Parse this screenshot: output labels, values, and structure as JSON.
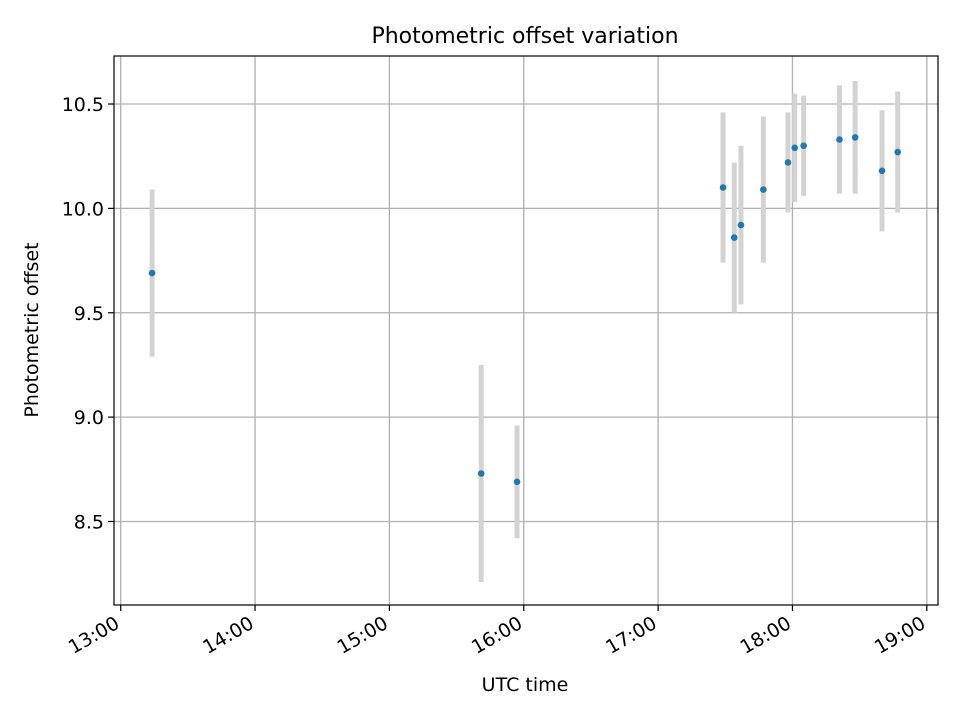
{
  "chart_data": {
    "type": "scatter",
    "title": "Photometric offset variation",
    "xlabel": "UTC time",
    "ylabel": "Photometric offset",
    "xlim": [
      "12:57",
      "19:05"
    ],
    "ylim": [
      8.1,
      10.73
    ],
    "x_ticks": [
      "13:00",
      "14:00",
      "15:00",
      "16:00",
      "17:00",
      "18:00",
      "19:00"
    ],
    "y_ticks": [
      8.5,
      9.0,
      9.5,
      10.0,
      10.5
    ],
    "grid": true,
    "colors": {
      "point": "#1f77b4",
      "errorbar": "#d3d3d3",
      "grid": "#b0b0b0"
    },
    "points": [
      {
        "time": "13:14",
        "y": 9.69,
        "y_err": 0.4
      },
      {
        "time": "15:41",
        "y": 8.73,
        "y_err": 0.52
      },
      {
        "time": "15:57",
        "y": 8.69,
        "y_err": 0.27
      },
      {
        "time": "17:29",
        "y": 10.1,
        "y_err": 0.36
      },
      {
        "time": "17:34",
        "y": 9.86,
        "y_err": 0.36
      },
      {
        "time": "17:37",
        "y": 9.92,
        "y_err": 0.38
      },
      {
        "time": "17:47",
        "y": 10.09,
        "y_err": 0.35
      },
      {
        "time": "17:58",
        "y": 10.22,
        "y_err": 0.24
      },
      {
        "time": "18:01",
        "y": 10.29,
        "y_err": 0.26
      },
      {
        "time": "18:05",
        "y": 10.3,
        "y_err": 0.24
      },
      {
        "time": "18:21",
        "y": 10.33,
        "y_err": 0.26
      },
      {
        "time": "18:28",
        "y": 10.34,
        "y_err": 0.27
      },
      {
        "time": "18:40",
        "y": 10.18,
        "y_err": 0.29
      },
      {
        "time": "18:47",
        "y": 10.27,
        "y_err": 0.29
      }
    ]
  }
}
